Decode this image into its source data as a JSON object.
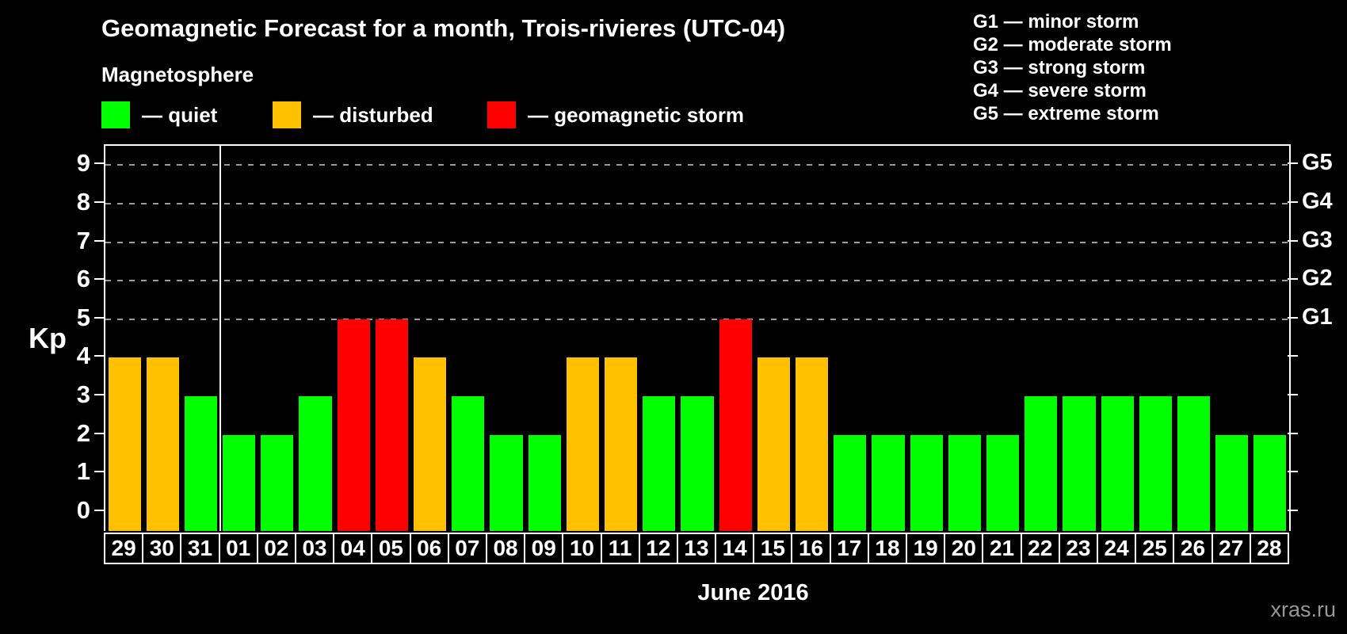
{
  "header": {
    "title": "Geomagnetic Forecast for a month, Trois-rivieres (UTC-04)",
    "subtitle": "Magnetosphere"
  },
  "legend": {
    "items": [
      {
        "name": "quiet",
        "label": "— quiet",
        "color": "#00ff00"
      },
      {
        "name": "disturbed",
        "label": "— disturbed",
        "color": "#ffc000"
      },
      {
        "name": "storm",
        "label": "— geomagnetic storm",
        "color": "#ff0000"
      }
    ]
  },
  "g_legend": {
    "items": [
      "G1 — minor storm",
      "G2 — moderate storm",
      "G3 — strong storm",
      "G4 — severe storm",
      "G5 — extreme storm"
    ]
  },
  "axes": {
    "y_left_label": "Kp",
    "y_left_ticks": [
      0,
      1,
      2,
      3,
      4,
      5,
      6,
      7,
      8,
      9
    ],
    "y_right_labels": {
      "5": "G1",
      "6": "G2",
      "7": "G3",
      "8": "G4",
      "9": "G5"
    }
  },
  "footer": {
    "x_axis_title": "June 2016",
    "watermark": "xras.ru"
  },
  "chart_data": {
    "type": "bar",
    "title": "Geomagnetic Forecast for a month, Trois-rivieres (UTC-04)",
    "xlabel": "June 2016",
    "ylabel": "Kp",
    "ylim": [
      -0.5,
      9.5
    ],
    "grid_levels": [
      5,
      6,
      7,
      8,
      9
    ],
    "separator_after_index": 2,
    "categories": [
      "29",
      "30",
      "31",
      "01",
      "02",
      "03",
      "04",
      "05",
      "06",
      "07",
      "08",
      "09",
      "10",
      "11",
      "12",
      "13",
      "14",
      "15",
      "16",
      "17",
      "18",
      "19",
      "20",
      "21",
      "22",
      "23",
      "24",
      "25",
      "26",
      "27",
      "28"
    ],
    "values": [
      4,
      4,
      3,
      2,
      2,
      3,
      5,
      5,
      4,
      3,
      2,
      2,
      4,
      4,
      3,
      3,
      5,
      4,
      4,
      2,
      2,
      2,
      2,
      2,
      3,
      3,
      3,
      3,
      3,
      2,
      2
    ],
    "states": [
      "disturbed",
      "disturbed",
      "quiet",
      "quiet",
      "quiet",
      "quiet",
      "storm",
      "storm",
      "disturbed",
      "quiet",
      "quiet",
      "quiet",
      "disturbed",
      "disturbed",
      "quiet",
      "quiet",
      "storm",
      "disturbed",
      "disturbed",
      "quiet",
      "quiet",
      "quiet",
      "quiet",
      "quiet",
      "quiet",
      "quiet",
      "quiet",
      "quiet",
      "quiet",
      "quiet",
      "quiet"
    ],
    "state_colors": {
      "quiet": "#00ff00",
      "disturbed": "#ffc000",
      "storm": "#ff0000"
    },
    "legend_position": "top-left",
    "grid": "dashed horizontal lines at G1–G5 levels only"
  }
}
